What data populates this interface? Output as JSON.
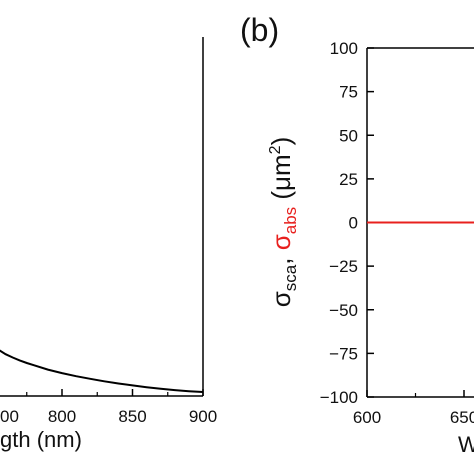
{
  "chart_data": [
    {
      "panel": "a",
      "type": "line",
      "xlabel_visible": "gth (nm)",
      "x_ticks": [
        "00",
        "800",
        "850",
        "900"
      ],
      "xlim": [
        750,
        900
      ],
      "series": [
        {
          "color": "#000000",
          "x": [
            750,
            755,
            760,
            765,
            770,
            775,
            780,
            790,
            800,
            810,
            820,
            830,
            840,
            850,
            860,
            870,
            880,
            890,
            900
          ],
          "y": [
            0.3,
            0.21,
            0.19,
            0.175,
            0.162,
            0.15,
            0.14,
            0.12,
            0.104,
            0.09,
            0.078,
            0.067,
            0.057,
            0.048,
            0.04,
            0.033,
            0.027,
            0.022,
            0.018
          ]
        }
      ]
    },
    {
      "panel": "b",
      "panel_label": "(b)",
      "type": "line",
      "ylabel_parts": [
        {
          "text": "σ",
          "sub": "sca",
          "color": "#000000"
        },
        {
          "text": ", ",
          "sub": "",
          "color": "#000000"
        },
        {
          "text": "σ",
          "sub": "abs",
          "color": "#e8201e"
        },
        {
          "text": " (μm",
          "sup": "2",
          "tail": ")",
          "color": "#000000"
        }
      ],
      "xlim": [
        600,
        700
      ],
      "ylim": [
        -100,
        100
      ],
      "x_ticks": [
        600,
        650
      ],
      "y_ticks": [
        100,
        75,
        50,
        25,
        0,
        -25,
        -50,
        -75,
        -100
      ],
      "xlabel_visible": "W",
      "series": [
        {
          "color": "#e8201e",
          "x": [
            600,
            700
          ],
          "y": [
            0,
            0
          ]
        }
      ]
    }
  ]
}
